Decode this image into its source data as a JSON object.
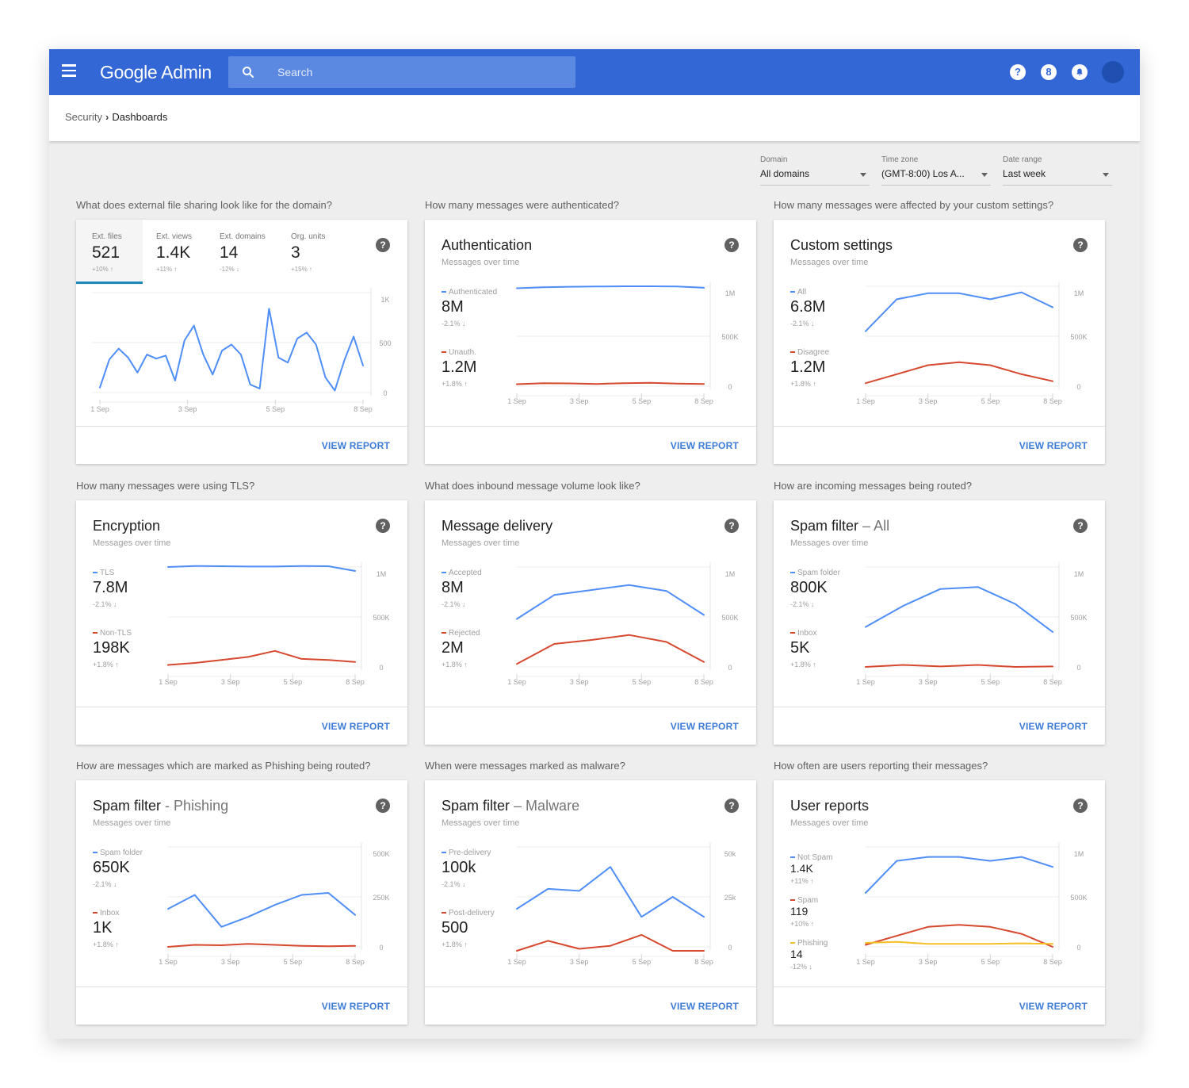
{
  "header": {
    "app_title": "Google Admin",
    "search_placeholder": "Search",
    "help_icon": "?",
    "apps_icon": "8",
    "notifications_icon": "bell"
  },
  "breadcrumb": {
    "parent": "Security",
    "current": "Dashboards"
  },
  "filters": [
    {
      "label": "Domain",
      "value": "All domains"
    },
    {
      "label": "Time zone",
      "value": "(GMT-8:00) Los A..."
    },
    {
      "label": "Date range",
      "value": "Last week"
    }
  ],
  "colors": {
    "primary": "#3367d6",
    "blue_series": "#4f8ef7",
    "red_series": "#d6492f",
    "yellow_series": "#f6bf26",
    "link": "#3e7bd7"
  },
  "cards": [
    {
      "question": "What does external file sharing look like for the domain?",
      "view_report": "VIEW REPORT",
      "tabs": [
        {
          "label": "Ext. files",
          "value": "521",
          "change": "+10% ↑"
        },
        {
          "label": "Ext. views",
          "value": "1.4K",
          "change": "+11% ↑"
        },
        {
          "label": "Ext. domains",
          "value": "14",
          "change": "-12% ↓"
        },
        {
          "label": "Org. units",
          "value": "3",
          "change": "+15% ↑"
        }
      ],
      "chart_data": {
        "type": "line",
        "ylim": [
          0,
          1000
        ],
        "yticks": [
          "1K",
          "500",
          "0"
        ],
        "xticks": [
          "1 Sep",
          "3 Sep",
          "5 Sep",
          "8 Sep"
        ],
        "series": [
          {
            "color": "#4f8ef7",
            "values": [
              50,
              330,
              440,
              350,
              200,
              380,
              340,
              370,
              120,
              520,
              670,
              380,
              180,
              420,
              480,
              380,
              80,
              40,
              840,
              350,
              300,
              540,
              600,
              480,
              150,
              20,
              320,
              560,
              270
            ]
          }
        ]
      }
    },
    {
      "question": "How many messages were authenticated?",
      "title": "Authentication",
      "title_suffix": "",
      "subtitle": "Messages over time",
      "view_report": "VIEW REPORT",
      "metrics": [
        {
          "label": "Authenticated",
          "value": "8M",
          "change": "-2.1% ↓",
          "color": "#4f8ef7"
        },
        {
          "label": "Unauth.",
          "value": "1.2M",
          "change": "+1.8% ↑",
          "color": "#d6492f"
        }
      ],
      "chart_data": {
        "type": "line",
        "ylim": [
          0,
          1000000
        ],
        "yticks": [
          "1M",
          "500K",
          "0"
        ],
        "xticks": [
          "1 Sep",
          "3 Sep",
          "5 Sep",
          "8 Sep"
        ],
        "series": [
          {
            "color": "#4f8ef7",
            "values": [
              980000,
              990000,
              995000,
              998000,
              1000000,
              1000000,
              998000,
              985000
            ]
          },
          {
            "color": "#d6492f",
            "values": [
              20000,
              30000,
              28000,
              22000,
              30000,
              34000,
              26000,
              22000
            ]
          }
        ]
      }
    },
    {
      "question": "How many messages were affected by your custom settings?",
      "title": "Custom settings",
      "title_suffix": "",
      "subtitle": "Messages over time",
      "view_report": "VIEW REPORT",
      "metrics": [
        {
          "label": "All",
          "value": "6.8M",
          "change": "-2.1% ↓",
          "color": "#4f8ef7"
        },
        {
          "label": "Disagree",
          "value": "1.2M",
          "change": "+1.8% ↑",
          "color": "#d6492f"
        }
      ],
      "chart_data": {
        "type": "line",
        "ylim": [
          0,
          1000000
        ],
        "yticks": [
          "1M",
          "500K",
          "0"
        ],
        "xticks": [
          "1 Sep",
          "3 Sep",
          "5 Sep",
          "8 Sep"
        ],
        "series": [
          {
            "color": "#4f8ef7",
            "values": [
              550000,
              870000,
              930000,
              930000,
              870000,
              940000,
              790000
            ]
          },
          {
            "color": "#d6492f",
            "values": [
              30000,
              120000,
              210000,
              240000,
              210000,
              120000,
              50000
            ]
          }
        ]
      }
    },
    {
      "question": "How many messages were using TLS?",
      "title": "Encryption",
      "title_suffix": "",
      "subtitle": "Messages over time",
      "view_report": "VIEW REPORT",
      "metrics": [
        {
          "label": "TLS",
          "value": "7.8M",
          "change": "-2.1% ↓",
          "color": "#4f8ef7"
        },
        {
          "label": "Non-TLS",
          "value": "198K",
          "change": "+1.8% ↑",
          "color": "#d6492f"
        }
      ],
      "chart_data": {
        "type": "line",
        "ylim": [
          0,
          1000000
        ],
        "yticks": [
          "1M",
          "500K",
          "0"
        ],
        "xticks": [
          "1 Sep",
          "3 Sep",
          "5 Sep",
          "8 Sep"
        ],
        "series": [
          {
            "color": "#4f8ef7",
            "values": [
              1000000,
              1010000,
              1008000,
              1005000,
              1005000,
              1010000,
              1008000,
              960000
            ]
          },
          {
            "color": "#d6492f",
            "values": [
              20000,
              40000,
              70000,
              100000,
              160000,
              80000,
              70000,
              50000
            ]
          }
        ]
      }
    },
    {
      "question": "What does inbound message volume look like?",
      "title": "Message delivery",
      "title_suffix": "",
      "subtitle": "Messages over time",
      "view_report": "VIEW REPORT",
      "metrics": [
        {
          "label": "Accepted",
          "value": "8M",
          "change": "-2.1% ↓",
          "color": "#4f8ef7"
        },
        {
          "label": "Rejected",
          "value": "2M",
          "change": "+1.8% ↑",
          "color": "#d6492f"
        }
      ],
      "chart_data": {
        "type": "line",
        "ylim": [
          0,
          1000000
        ],
        "yticks": [
          "1M",
          "500K",
          "0"
        ],
        "xticks": [
          "1 Sep",
          "3 Sep",
          "5 Sep",
          "8 Sep"
        ],
        "series": [
          {
            "color": "#4f8ef7",
            "values": [
              480000,
              720000,
              770000,
              820000,
              760000,
              520000
            ]
          },
          {
            "color": "#d6492f",
            "values": [
              30000,
              230000,
              270000,
              320000,
              250000,
              50000
            ]
          }
        ]
      }
    },
    {
      "question": "How are incoming messages being routed?",
      "title": "Spam filter",
      "title_suffix": "– All",
      "subtitle": "Messages over time",
      "view_report": "VIEW REPORT",
      "metrics": [
        {
          "label": "Spam folder",
          "value": "800K",
          "change": "-2.1% ↓",
          "color": "#4f8ef7"
        },
        {
          "label": "Inbox",
          "value": "5K",
          "change": "+1.8% ↑",
          "color": "#d6492f"
        }
      ],
      "chart_data": {
        "type": "line",
        "ylim": [
          0,
          1000000
        ],
        "yticks": [
          "1M",
          "500K",
          "0"
        ],
        "xticks": [
          "1 Sep",
          "3 Sep",
          "5 Sep",
          "8 Sep"
        ],
        "series": [
          {
            "color": "#4f8ef7",
            "values": [
              400000,
              610000,
              780000,
              800000,
              630000,
              350000
            ]
          },
          {
            "color": "#d6492f",
            "values": [
              0,
              20000,
              5000,
              20000,
              0,
              5000
            ]
          }
        ]
      }
    },
    {
      "question": "How are messages which are marked as Phishing being routed?",
      "title": "Spam filter",
      "title_suffix": "- Phishing",
      "subtitle": "Messages over time",
      "view_report": "VIEW REPORT",
      "metrics": [
        {
          "label": "Spam folder",
          "value": "650K",
          "change": "-2.1% ↓",
          "color": "#4f8ef7"
        },
        {
          "label": "Inbox",
          "value": "1K",
          "change": "+1.8% ↑",
          "color": "#d6492f"
        }
      ],
      "chart_data": {
        "type": "line",
        "ylim": [
          0,
          500000
        ],
        "yticks": [
          "500K",
          "250K",
          "0"
        ],
        "xticks": [
          "1 Sep",
          "3 Sep",
          "5 Sep",
          "8 Sep"
        ],
        "series": [
          {
            "color": "#4f8ef7",
            "values": [
              190000,
              260000,
              100000,
              150000,
              210000,
              260000,
              270000,
              160000
            ]
          },
          {
            "color": "#d6492f",
            "values": [
              0,
              10000,
              8000,
              15000,
              10000,
              5000,
              3000,
              5000
            ]
          }
        ]
      }
    },
    {
      "question": "When were messages marked as malware?",
      "title": "Spam filter",
      "title_suffix": "– Malware",
      "subtitle": "Messages over time",
      "view_report": "VIEW REPORT",
      "metrics": [
        {
          "label": "Pre-delivery",
          "value": "100k",
          "change": "-2.1% ↓",
          "color": "#4f8ef7"
        },
        {
          "label": "Post-delivery",
          "value": "500",
          "change": "+1.8% ↑",
          "color": "#d6492f"
        }
      ],
      "chart_data": {
        "type": "line",
        "ylim": [
          0,
          50000
        ],
        "yticks": [
          "50k",
          "25k",
          "0"
        ],
        "xticks": [
          "1 Sep",
          "3 Sep",
          "5 Sep",
          "8 Sep"
        ],
        "series": [
          {
            "color": "#4f8ef7",
            "values": [
              19000,
              29000,
              28000,
              40000,
              15000,
              25000,
              15000
            ]
          },
          {
            "color": "#d6492f",
            "values": [
              -2000,
              3000,
              -1000,
              500,
              6000,
              -2000,
              -2000
            ]
          }
        ]
      }
    },
    {
      "question": "How often are users reporting their messages?",
      "title": "User reports",
      "title_suffix": "",
      "subtitle": "Messages over time",
      "view_report": "VIEW REPORT",
      "metrics": [
        {
          "label": "Not Spam",
          "value": "1.4K",
          "change": "+11% ↑",
          "color": "#4f8ef7"
        },
        {
          "label": "Spam",
          "value": "119",
          "change": "+10% ↑",
          "color": "#d6492f"
        },
        {
          "label": "Phishing",
          "value": "14",
          "change": "-12% ↓",
          "color": "#f6bf26"
        }
      ],
      "chart_data": {
        "type": "line",
        "ylim": [
          0,
          1000000
        ],
        "yticks": [
          "1M",
          "500K",
          "0"
        ],
        "xticks": [
          "1 Sep",
          "3 Sep",
          "5 Sep",
          "8 Sep"
        ],
        "series": [
          {
            "color": "#4f8ef7",
            "values": [
              540000,
              860000,
              900000,
              900000,
              860000,
              900000,
              800000
            ]
          },
          {
            "color": "#d6492f",
            "values": [
              20000,
              110000,
              200000,
              220000,
              200000,
              130000,
              0
            ]
          },
          {
            "color": "#f6bf26",
            "values": [
              40000,
              50000,
              30000,
              30000,
              30000,
              35000,
              30000
            ]
          }
        ]
      }
    }
  ]
}
